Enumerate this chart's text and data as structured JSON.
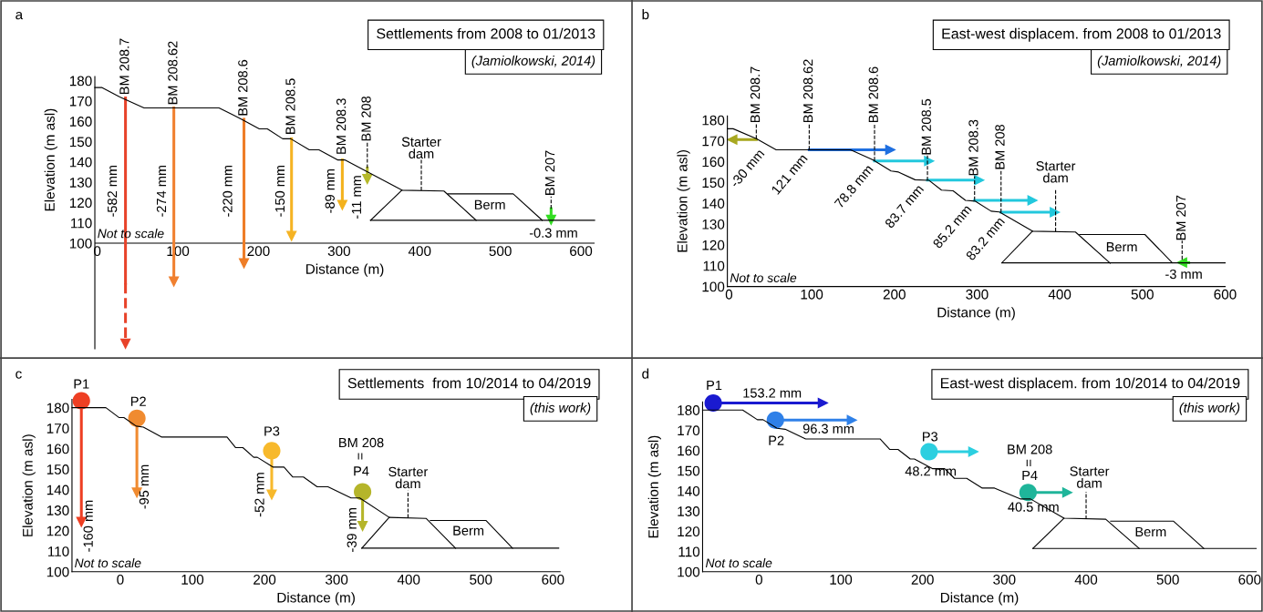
{
  "chart_data": [
    {
      "type": "line",
      "title": "Settlements from 2008 to 01/2013",
      "subtitle": "(Jamiolkowski, 2014)",
      "xlabel": "Distance (m)",
      "ylabel": "Elevation (m asl)",
      "xlim": [
        -3,
        617
      ],
      "xticks": [
        0,
        100,
        200,
        300,
        400,
        500,
        600
      ],
      "ylim": [
        48,
        182
      ],
      "yticks": [
        100,
        110,
        120,
        130,
        140,
        150,
        160,
        170,
        180
      ],
      "ref_lines": [
        {
          "axis": "y",
          "value": 100,
          "color": "#000000"
        }
      ],
      "series": [
        {
          "color": "#000000",
          "x": [
            -3,
            6,
            28,
            58,
            151,
            178,
            201,
            211,
            230,
            240,
            263,
            275,
            298,
            307,
            378,
            430,
            470
          ],
          "values": [
            176.6,
            176.6,
            172,
            166.6,
            166.6,
            161.2,
            156.3,
            156.3,
            151.4,
            151.4,
            146,
            146,
            141,
            141,
            126.1,
            125.7,
            111.3
          ]
        },
        {
          "color": "#000000",
          "x": [
            339,
            378
          ],
          "values": [
            111.3,
            126.1
          ]
        },
        {
          "color": "#000000",
          "x": [
            435,
            516,
            552
          ],
          "values": [
            124.3,
            124.3,
            111.3
          ]
        },
        {
          "color": "#000000",
          "x": [
            339,
            617
          ],
          "values": [
            111.3,
            111.3
          ]
        },
        {
          "color": "#000000",
          "line_style": "dashed",
          "x": [
            335,
            335
          ],
          "values": [
            137,
            149.5
          ]
        },
        {
          "color": "#000000",
          "line_style": "dashed",
          "x": [
            563,
            563
          ],
          "values": [
            117,
            123
          ]
        },
        {
          "color": "#000000",
          "line_style": "dashed",
          "x": [
            402,
            402
          ],
          "values": [
            126,
            141
          ]
        },
        {
          "color": "#e8432a",
          "x": [
            35,
            35
          ],
          "values": [
            171.5,
            80.3
          ]
        },
        {
          "color": "#e8432a",
          "line_style": "dashed",
          "x": [
            35,
            35
          ],
          "values": [
            80.3,
            50.6
          ]
        },
        {
          "color": "#f08030",
          "x": [
            95,
            95
          ],
          "values": [
            166.6,
            81.2
          ]
        },
        {
          "color": "#ee7d27",
          "x": [
            182,
            182
          ],
          "values": [
            161,
            90.1
          ]
        },
        {
          "color": "#f5b323",
          "x": [
            241,
            241
          ],
          "values": [
            151.4,
            103.6
          ]
        },
        {
          "color": "#f3b21d",
          "x": [
            304,
            304
          ],
          "values": [
            141,
            118.8
          ]
        },
        {
          "color": "#b5b92a",
          "x": [
            335,
            335
          ],
          "values": [
            137,
            131.6
          ]
        },
        {
          "color": "#33dd22",
          "x": [
            563,
            563
          ],
          "values": [
            117,
            111.5
          ]
        }
      ],
      "annotations": [
        "a",
        "Not to scale",
        {
          "text": "BM 208.7",
          "x": 35,
          "y": 171.5
        },
        {
          "text": "BM 208.62",
          "x": 95,
          "y": 166.6
        },
        {
          "text": "BM 208.6",
          "x": 182,
          "y": 161
        },
        {
          "text": "BM 208.5",
          "x": 241,
          "y": 151.4
        },
        {
          "text": "BM 208.3",
          "x": 304,
          "y": 141
        },
        {
          "text": "BM 208",
          "x": 335,
          "y": 149.5
        },
        {
          "text": "BM 207",
          "x": 563,
          "y": 123
        },
        "-582 mm",
        "-274 mm",
        "-220 mm",
        "-150 mm",
        "-89 mm",
        "-11 mm",
        {
          "text": "-0.3 mm",
          "x": 563,
          "y": 111.5
        },
        {
          "text": "Starter\ndam",
          "x": 402,
          "y": 141
        },
        "Berm"
      ]
    },
    {
      "type": "line",
      "title": "East-west displacem. from 2008 to 01/2013",
      "subtitle": "(Jamiolkowski, 2014)",
      "xlabel": "Distance (m)",
      "ylabel": "Elevation (m asl)",
      "xlim": [
        -2,
        600
      ],
      "xticks": [
        0,
        100,
        200,
        300,
        400,
        500,
        600
      ],
      "ylim": [
        100,
        182
      ],
      "yticks": [
        100,
        110,
        120,
        130,
        140,
        150,
        160,
        170,
        180
      ],
      "series": [
        {
          "color": "#000000",
          "x": [
            -2,
            5,
            33,
            57,
            147,
            174,
            196,
            205,
            225,
            242,
            257,
            271,
            286,
            298,
            317,
            327,
            367,
            419,
            461
          ],
          "values": [
            175.8,
            175.8,
            171,
            165.7,
            165.7,
            160.9,
            155.5,
            155,
            151.3,
            151,
            146.3,
            146,
            141.4,
            141,
            136.2,
            135.8,
            126.6,
            126.2,
            111.2
          ]
        },
        {
          "color": "#000000",
          "x": [
            330,
            367
          ],
          "values": [
            111.4,
            126.6
          ]
        },
        {
          "color": "#000000",
          "x": [
            424,
            503,
            536
          ],
          "values": [
            125,
            125,
            111.4
          ]
        },
        {
          "color": "#000000",
          "x": [
            330,
            600
          ],
          "values": [
            111.4,
            111.4
          ]
        },
        {
          "color": "#000000",
          "line_style": "dashed",
          "x": [
            33,
            33
          ],
          "values": [
            171,
            178.5
          ]
        },
        {
          "color": "#000000",
          "line_style": "dashed",
          "x": [
            97,
            97
          ],
          "values": [
            165.7,
            178.5
          ]
        },
        {
          "color": "#000000",
          "line_style": "dashed",
          "x": [
            176,
            176
          ],
          "values": [
            160.5,
            178.5
          ]
        },
        {
          "color": "#000000",
          "line_style": "dashed",
          "x": [
            240,
            240
          ],
          "values": [
            151,
            163
          ]
        },
        {
          "color": "#000000",
          "line_style": "dashed",
          "x": [
            297,
            297
          ],
          "values": [
            141.5,
            153
          ]
        },
        {
          "color": "#000000",
          "line_style": "dashed",
          "x": [
            329,
            329
          ],
          "values": [
            135.7,
            156
          ]
        },
        {
          "color": "#000000",
          "line_style": "dashed",
          "x": [
            548,
            548
          ],
          "values": [
            113,
            122
          ]
        },
        {
          "color": "#000000",
          "line_style": "dashed",
          "x": [
            395,
            395
          ],
          "values": [
            126.5,
            147
          ]
        },
        {
          "color": "#a8a820",
          "x": [
            33,
            4
          ],
          "values": [
            170.6,
            170.6
          ]
        },
        {
          "color": "#1f6fe0",
          "x": [
            97,
            195
          ],
          "values": [
            165.7,
            165.7
          ]
        },
        {
          "color": "#22c8dd",
          "x": [
            176,
            242
          ],
          "values": [
            160.3,
            160.3
          ]
        },
        {
          "color": "#22c8dd",
          "x": [
            240,
            302.6
          ],
          "values": [
            151.1,
            151.1
          ]
        },
        {
          "color": "#22c8dd",
          "x": [
            297,
            367
          ],
          "values": [
            141.4,
            141.4
          ]
        },
        {
          "color": "#22c8dd",
          "x": [
            329,
            394
          ],
          "values": [
            135.7,
            135.7
          ]
        },
        {
          "color": "#33dd22",
          "x": [
            556,
            548
          ],
          "values": [
            111.5,
            111.5
          ]
        }
      ],
      "annotations": [
        "b",
        "Not to scale",
        {
          "text": "BM 208.7",
          "x": 33,
          "y": 178.5
        },
        {
          "text": "BM 208.62",
          "x": 97,
          "y": 178.5
        },
        {
          "text": "BM 208.6",
          "x": 176,
          "y": 178.5
        },
        {
          "text": "BM 208.5",
          "x": 240,
          "y": 163
        },
        {
          "text": "BM 208.3",
          "x": 297,
          "y": 153
        },
        {
          "text": "BM 208",
          "x": 329,
          "y": 156
        },
        {
          "text": "BM 207",
          "x": 548,
          "y": 122
        },
        {
          "text": "-30 mm",
          "x": 33,
          "y": 170.6
        },
        {
          "text": "121 mm",
          "x": 97,
          "y": 165.7
        },
        {
          "text": "78.8 mm",
          "x": 176,
          "y": 160.3
        },
        {
          "text": "83.7 mm",
          "x": 240,
          "y": 151.1
        },
        {
          "text": "85.2 mm",
          "x": 297,
          "y": 141.4
        },
        {
          "text": "83.2 mm",
          "x": 329,
          "y": 135.7
        },
        {
          "text": "-3 mm",
          "x": 548,
          "y": 111.5
        },
        {
          "text": "Starter\ndam",
          "x": 395,
          "y": 147
        },
        "Berm"
      ]
    },
    {
      "type": "line",
      "title": "Settlements  from 10/2014 to 04/2019",
      "subtitle": "(this work)",
      "xlabel": "Distance (m)",
      "ylabel": "Elevation (m asl)",
      "xlim": [
        -67,
        610
      ],
      "xticks": [
        0,
        100,
        200,
        300,
        400,
        500,
        600
      ],
      "ylim": [
        100,
        184
      ],
      "yticks": [
        100,
        110,
        120,
        130,
        140,
        150,
        160,
        170,
        180
      ],
      "series": [
        {
          "color": "#000000",
          "x": [
            -67,
            -20,
            -2,
            5,
            22,
            32,
            57,
            148,
            160,
            170,
            185,
            190,
            212,
            227,
            239,
            254,
            273,
            288,
            320,
            332,
            373,
            424,
            465
          ],
          "values": [
            180,
            180,
            175.2,
            175.2,
            171,
            170.5,
            165.7,
            165.7,
            160.5,
            160.5,
            155.8,
            155.8,
            151,
            151,
            146.2,
            146.2,
            141.4,
            141.4,
            136,
            136,
            126.5,
            126,
            111.5
          ]
        },
        {
          "color": "#000000",
          "x": [
            335,
            373
          ],
          "values": [
            111.5,
            126.5
          ]
        },
        {
          "color": "#000000",
          "x": [
            430,
            507,
            544
          ],
          "values": [
            125,
            125,
            111.5
          ]
        },
        {
          "color": "#000000",
          "x": [
            335,
            608
          ],
          "values": [
            111.5,
            111.5
          ]
        },
        {
          "color": "#000000",
          "line_style": "dashed",
          "x": [
            399,
            399
          ],
          "values": [
            126.3,
            139.5
          ]
        },
        {
          "color": "#ee3f23",
          "x": [
            -54,
            -54
          ],
          "values": [
            183.4,
            124.3
          ]
        },
        {
          "color": "#f08b30",
          "x": [
            23,
            23
          ],
          "values": [
            174.8,
            138.6
          ]
        },
        {
          "color": "#f7b92c",
          "x": [
            210,
            210
          ],
          "values": [
            159,
            137.6
          ]
        },
        {
          "color": "#b5b52a",
          "x": [
            336,
            336
          ],
          "values": [
            139,
            122.3
          ]
        },
        {
          "type": "scatter",
          "marker": "circle",
          "x": [
            -54,
            23,
            210,
            336
          ],
          "values": [
            183.4,
            174.8,
            159,
            139
          ],
          "colors": [
            "#ee3f23",
            "#f08b30",
            "#f7b92c",
            "#b5b52a"
          ]
        }
      ],
      "annotations": [
        "c",
        "Not to scale",
        {
          "text": "P1",
          "x": -54,
          "y": 183.4
        },
        {
          "text": "P2",
          "x": 23,
          "y": 174.8
        },
        {
          "text": "P3",
          "x": 210,
          "y": 159
        },
        "BM 208",
        "=",
        {
          "text": "P4",
          "x": 336,
          "y": 139
        },
        {
          "text": "-160 mm",
          "x": -54,
          "y": 124.3
        },
        {
          "text": "-95 mm",
          "x": 23,
          "y": 138.6
        },
        {
          "text": "-52 mm",
          "x": 210,
          "y": 137.6
        },
        {
          "text": "-39 mm",
          "x": 336,
          "y": 122.3
        },
        {
          "text": "Starter\ndam",
          "x": 399,
          "y": 139.5
        },
        "Berm"
      ]
    },
    {
      "type": "line",
      "title": "East-west displacem. from 10/2014 to 04/2019",
      "subtitle": "(this work)",
      "xlabel": "Distance (m)",
      "ylabel": "Elevation (m asl)",
      "xlim": [
        -69,
        608
      ],
      "xticks": [
        0,
        100,
        200,
        300,
        400,
        500,
        600
      ],
      "ylim": [
        100,
        184
      ],
      "yticks": [
        100,
        110,
        120,
        130,
        140,
        150,
        160,
        170,
        180
      ],
      "series": [
        {
          "color": "#000000",
          "x": [
            -69,
            -20,
            -2,
            5,
            22,
            32,
            57,
            148,
            160,
            170,
            185,
            190,
            212,
            227,
            239,
            254,
            273,
            288,
            320,
            332,
            373,
            424,
            465
          ],
          "values": [
            180,
            180,
            175.2,
            175.2,
            171,
            170.5,
            165.7,
            165.7,
            160.5,
            160.5,
            155.8,
            155.8,
            151,
            151,
            146.2,
            146.2,
            141.4,
            141.4,
            136,
            136,
            126.5,
            126,
            111.5
          ]
        },
        {
          "color": "#000000",
          "x": [
            335,
            373
          ],
          "values": [
            111.5,
            126.5
          ]
        },
        {
          "color": "#000000",
          "x": [
            430,
            507,
            544
          ],
          "values": [
            125,
            125,
            111.5
          ]
        },
        {
          "color": "#000000",
          "x": [
            335,
            608
          ],
          "values": [
            111.5,
            111.5
          ]
        },
        {
          "color": "#000000",
          "line_style": "dashed",
          "x": [
            400,
            400
          ],
          "values": [
            126,
            139.5
          ]
        },
        {
          "color": "#1a1ad0",
          "x": [
            -56,
            78
          ],
          "values": [
            183.5,
            183.5
          ]
        },
        {
          "color": "#2f80e8",
          "x": [
            20,
            113.5
          ],
          "values": [
            175,
            175
          ]
        },
        {
          "color": "#2ccfe0",
          "x": [
            208,
            262
          ],
          "values": [
            159.4,
            159.4
          ]
        },
        {
          "color": "#1fb59a",
          "x": [
            329,
            377
          ],
          "values": [
            139.2,
            139.2
          ]
        },
        {
          "type": "scatter",
          "marker": "circle",
          "x": [
            -56,
            20,
            208,
            329
          ],
          "values": [
            183.5,
            175,
            159.4,
            139.2
          ],
          "colors": [
            "#1a1ad0",
            "#2f80e8",
            "#2ccfe0",
            "#1fb59a"
          ]
        }
      ],
      "annotations": [
        "d",
        "Not to scale",
        {
          "text": "P1",
          "x": -56,
          "y": 183.5
        },
        {
          "text": "153.2 mm",
          "x": 78,
          "y": 183.5
        },
        {
          "text": "P2",
          "x": 20,
          "y": 175
        },
        {
          "text": "96.3 mm",
          "x": 113.5,
          "y": 175
        },
        {
          "text": "P3",
          "x": 208,
          "y": 159.4
        },
        {
          "text": "48.2 mm",
          "x": 208,
          "y": 159.4
        },
        "BM 208",
        "=",
        {
          "text": "P4",
          "x": 329,
          "y": 139.2
        },
        {
          "text": "40.5 mm",
          "x": 329,
          "y": 139.2
        },
        {
          "text": "Starter\ndam",
          "x": 400,
          "y": 139.5
        },
        "Berm"
      ]
    }
  ]
}
